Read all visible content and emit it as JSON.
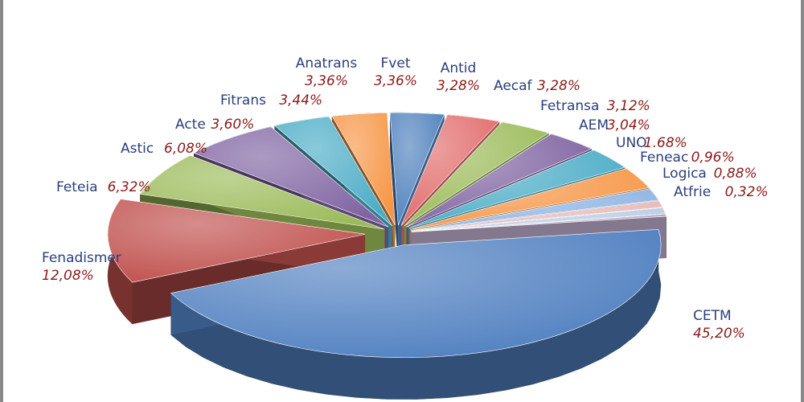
{
  "chart_data": {
    "type": "pie",
    "title": "",
    "series": [
      {
        "categories": [
          "CETM",
          "Fenadismer",
          "Feteia",
          "Astic",
          "Acte",
          "Fitrans",
          "Anatrans",
          "Fvet",
          "Antid",
          "Aecaf",
          "Fetransa",
          "AEM",
          "UNO",
          "Feneac",
          "Logica",
          "Atfrie"
        ],
        "values": [
          45.2,
          12.08,
          6.32,
          6.08,
          3.6,
          3.44,
          3.36,
          3.36,
          3.28,
          3.28,
          3.12,
          3.04,
          1.68,
          0.96,
          0.88,
          0.32
        ]
      }
    ],
    "labels": [
      {
        "name": "CETM",
        "value": "45,20%"
      },
      {
        "name": "Fenadismer",
        "value": "12,08%"
      },
      {
        "name": "Feteia",
        "value": "6,32%"
      },
      {
        "name": "Astic",
        "value": "6,08%"
      },
      {
        "name": "Acte",
        "value": "3,60%"
      },
      {
        "name": "Fitrans",
        "value": "3,44%"
      },
      {
        "name": "Anatrans",
        "value": "3,36%"
      },
      {
        "name": "Fvet",
        "value": "3,36%"
      },
      {
        "name": "Antid",
        "value": "3,28%"
      },
      {
        "name": "Aecaf",
        "value": "3,28%"
      },
      {
        "name": "Fetransa",
        "value": "3,12%"
      },
      {
        "name": "AEM",
        "value": "3,04%"
      },
      {
        "name": "UNO",
        "value": "1.68%"
      },
      {
        "name": "Feneac",
        "value": "0,96%"
      },
      {
        "name": "Logica",
        "value": "0,88%"
      },
      {
        "name": "Atfrie",
        "value": "0,32%"
      }
    ],
    "colors": [
      "#4f7fc0",
      "#c0504d",
      "#9bbb59",
      "#8064a2",
      "#4bacc6",
      "#f79646",
      "#4f81bd",
      "#e26b6b",
      "#9bbb59",
      "#8064a2",
      "#4bacc6",
      "#f79646",
      "#8eb4e3",
      "#e6b9b8",
      "#b9cde5",
      "#b7a6c6"
    ],
    "legend": "labels next to slices",
    "style": "exploded 3d pie"
  }
}
